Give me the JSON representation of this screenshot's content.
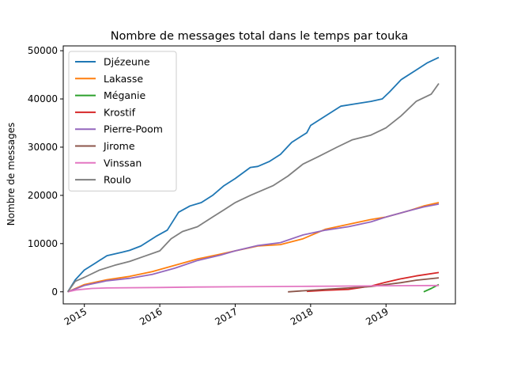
{
  "chart_data": {
    "type": "line",
    "title": "Nombre de messages total dans le temps par touka",
    "xlabel": "",
    "ylabel": "Nombre de messages",
    "xlim": [
      2014.72,
      2019.92
    ],
    "ylim": [
      -2500,
      51000
    ],
    "x_ticks": [
      2015,
      2016,
      2017,
      2018,
      2019
    ],
    "x_tick_labels": [
      "2015",
      "2016",
      "2017",
      "2018",
      "2019"
    ],
    "y_ticks": [
      0,
      10000,
      20000,
      30000,
      40000,
      50000
    ],
    "y_tick_labels": [
      "0",
      "10000",
      "20000",
      "30000",
      "40000",
      "50000"
    ],
    "grid": false,
    "legend_position": "upper-left",
    "series": [
      {
        "name": "Djézeune",
        "color": "#1f77b4",
        "x": [
          2014.78,
          2014.88,
          2015.0,
          2015.15,
          2015.3,
          2015.5,
          2015.6,
          2015.75,
          2015.95,
          2016.1,
          2016.25,
          2016.4,
          2016.55,
          2016.7,
          2016.85,
          2017.0,
          2017.2,
          2017.3,
          2017.45,
          2017.6,
          2017.75,
          2017.95,
          2018.0,
          2018.2,
          2018.4,
          2018.6,
          2018.8,
          2018.95,
          2019.05,
          2019.2,
          2019.4,
          2019.55,
          2019.7
        ],
        "y": [
          0,
          2500,
          4500,
          6000,
          7500,
          8200,
          8600,
          9500,
          11500,
          12800,
          16500,
          17800,
          18500,
          20000,
          22000,
          23500,
          25800,
          26000,
          27000,
          28500,
          31000,
          33000,
          34500,
          36500,
          38500,
          39000,
          39500,
          40000,
          41500,
          44000,
          46000,
          47500,
          48600
        ]
      },
      {
        "name": "Lakasse",
        "color": "#ff7f0e",
        "x": [
          2014.78,
          2015.0,
          2015.3,
          2015.6,
          2015.9,
          2016.2,
          2016.5,
          2016.8,
          2017.0,
          2017.3,
          2017.6,
          2017.9,
          2018.2,
          2018.5,
          2018.8,
          2019.0,
          2019.3,
          2019.5,
          2019.7
        ],
        "y": [
          0,
          1500,
          2500,
          3200,
          4200,
          5500,
          6800,
          7800,
          8500,
          9500,
          9800,
          11000,
          13000,
          14000,
          15000,
          15500,
          16800,
          17800,
          18500
        ]
      },
      {
        "name": "Méganie",
        "color": "#2ca02c",
        "x": [
          2019.5,
          2019.6,
          2019.7
        ],
        "y": [
          0,
          700,
          1500
        ]
      },
      {
        "name": "Krostif",
        "color": "#d62728",
        "x": [
          2017.95,
          2018.2,
          2018.5,
          2018.8,
          2019.0,
          2019.2,
          2019.4,
          2019.7
        ],
        "y": [
          100,
          300,
          500,
          1200,
          2000,
          2700,
          3300,
          4000
        ]
      },
      {
        "name": "Pierre-Poom",
        "color": "#9467bd",
        "x": [
          2014.78,
          2015.0,
          2015.3,
          2015.6,
          2015.9,
          2016.2,
          2016.5,
          2016.8,
          2017.0,
          2017.3,
          2017.6,
          2017.9,
          2018.2,
          2018.5,
          2018.8,
          2019.0,
          2019.3,
          2019.5,
          2019.7
        ],
        "y": [
          0,
          1300,
          2300,
          2800,
          3600,
          4900,
          6500,
          7600,
          8500,
          9600,
          10200,
          11800,
          12800,
          13500,
          14500,
          15500,
          16800,
          17600,
          18200
        ]
      },
      {
        "name": "Jirome",
        "color": "#8c564b",
        "x": [
          2017.7,
          2017.9,
          2018.2,
          2018.5,
          2018.8,
          2019.0,
          2019.2,
          2019.4,
          2019.7
        ],
        "y": [
          0,
          200,
          500,
          800,
          1100,
          1500,
          1900,
          2400,
          2900
        ]
      },
      {
        "name": "Vinssan",
        "color": "#e377c2",
        "x": [
          2014.78,
          2014.9,
          2015.1,
          2015.3,
          2016.0,
          2016.5,
          2017.0,
          2017.5,
          2018.0,
          2018.5,
          2019.0,
          2019.7
        ],
        "y": [
          0,
          400,
          700,
          800,
          900,
          1000,
          1050,
          1100,
          1150,
          1200,
          1250,
          1300
        ]
      },
      {
        "name": "Roulo",
        "color": "#7f7f7f",
        "x": [
          2014.78,
          2014.88,
          2015.0,
          2015.2,
          2015.4,
          2015.6,
          2015.8,
          2016.0,
          2016.15,
          2016.3,
          2016.5,
          2016.7,
          2016.85,
          2017.0,
          2017.2,
          2017.35,
          2017.5,
          2017.7,
          2017.9,
          2018.1,
          2018.35,
          2018.55,
          2018.8,
          2019.0,
          2019.2,
          2019.4,
          2019.6,
          2019.7
        ],
        "y": [
          0,
          2200,
          3000,
          4500,
          5500,
          6300,
          7400,
          8500,
          11000,
          12500,
          13500,
          15500,
          17000,
          18500,
          20000,
          21000,
          22000,
          24000,
          26500,
          28000,
          30000,
          31500,
          32500,
          34000,
          36500,
          39500,
          41000,
          43200
        ]
      }
    ]
  }
}
